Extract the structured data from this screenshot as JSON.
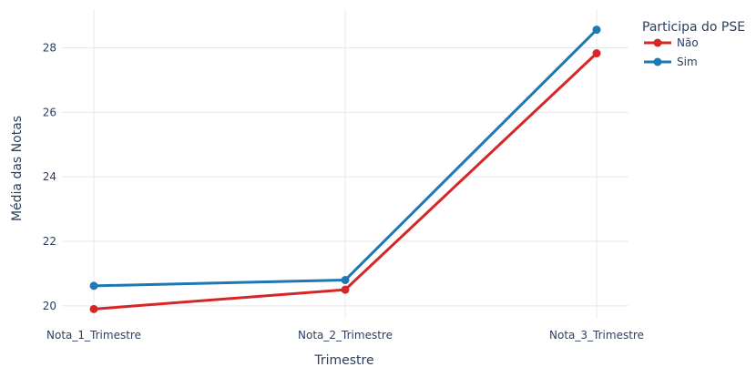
{
  "chart_data": {
    "type": "line",
    "categories": [
      "Nota_1_Trimestre",
      "Nota_2_Trimestre",
      "Nota_3_Trimestre"
    ],
    "series": [
      {
        "name": "Não",
        "values": [
          19.9,
          20.5,
          27.83
        ],
        "color": "#d62728"
      },
      {
        "name": "Sim",
        "values": [
          20.62,
          20.8,
          28.56
        ],
        "color": "#1f77b4"
      }
    ],
    "title": "",
    "xlabel": "Trimestre",
    "ylabel": "Média das Notas",
    "ylim": [
      19.6,
      29.2
    ],
    "yticks": [
      20,
      22,
      24,
      26,
      28
    ],
    "grid": true,
    "legend": {
      "title": "Participa do PSE",
      "position": "top-right"
    }
  }
}
